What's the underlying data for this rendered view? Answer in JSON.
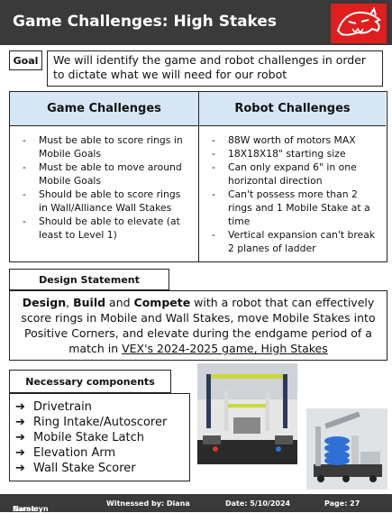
{
  "header": {
    "title": "Game Challenges: High Stakes"
  },
  "goal": {
    "label": "Goal",
    "text": "We will identify the game and robot challenges in order to dictate what we will need for our robot"
  },
  "challenges": {
    "game_header": "Game Challenges",
    "robot_header": "Robot Challenges",
    "game_items": [
      "Must be able to score rings in Mobile Goals",
      "Must be able to move around Mobile Goals",
      "Should be able to score rings in Wall/Alliance Wall Stakes",
      "Should be able to elevate (at least to Level 1)"
    ],
    "robot_items": [
      "88W worth of motors MAX",
      "18X18X18\" starting size",
      "Can only expand 6\" in one horizontal direction",
      "Can't possess more than 2 rings and 1 Mobile Stake at a time",
      "Vertical expansion can't break 2 planes of ladder"
    ]
  },
  "design_statement": {
    "label": "Design Statement",
    "w1": "Design",
    "sep1": ", ",
    "w2": "Build",
    "sep2": " and ",
    "w3": "Compete",
    "body": " with a robot that can effectively score rings in Mobile and Wall Stakes, move Mobile Stakes into Positive Corners, and elevate during the endgame period of a match in ",
    "underlined": "VEX's 2024-2025 game, High Stakes"
  },
  "components": {
    "label": "Necessary components",
    "arrow": "➔",
    "items": [
      "Drivetrain",
      "Ring Intake/Autoscorer",
      "Mobile Stake Latch",
      "Elevation Arm",
      "Wall Stake Scorer"
    ]
  },
  "footer": {
    "name_label": "Name: ",
    "name": "Saraleyn",
    "witness": "Witnessed by:  Diana",
    "date": "Date: 5/10/2024",
    "page": "Page: 27"
  },
  "colors": {
    "header_bg": "#3a3a3a",
    "logo_red": "#e01e1e",
    "table_header": "#d7e6f5",
    "ring_blue": "#2f6fd6"
  }
}
